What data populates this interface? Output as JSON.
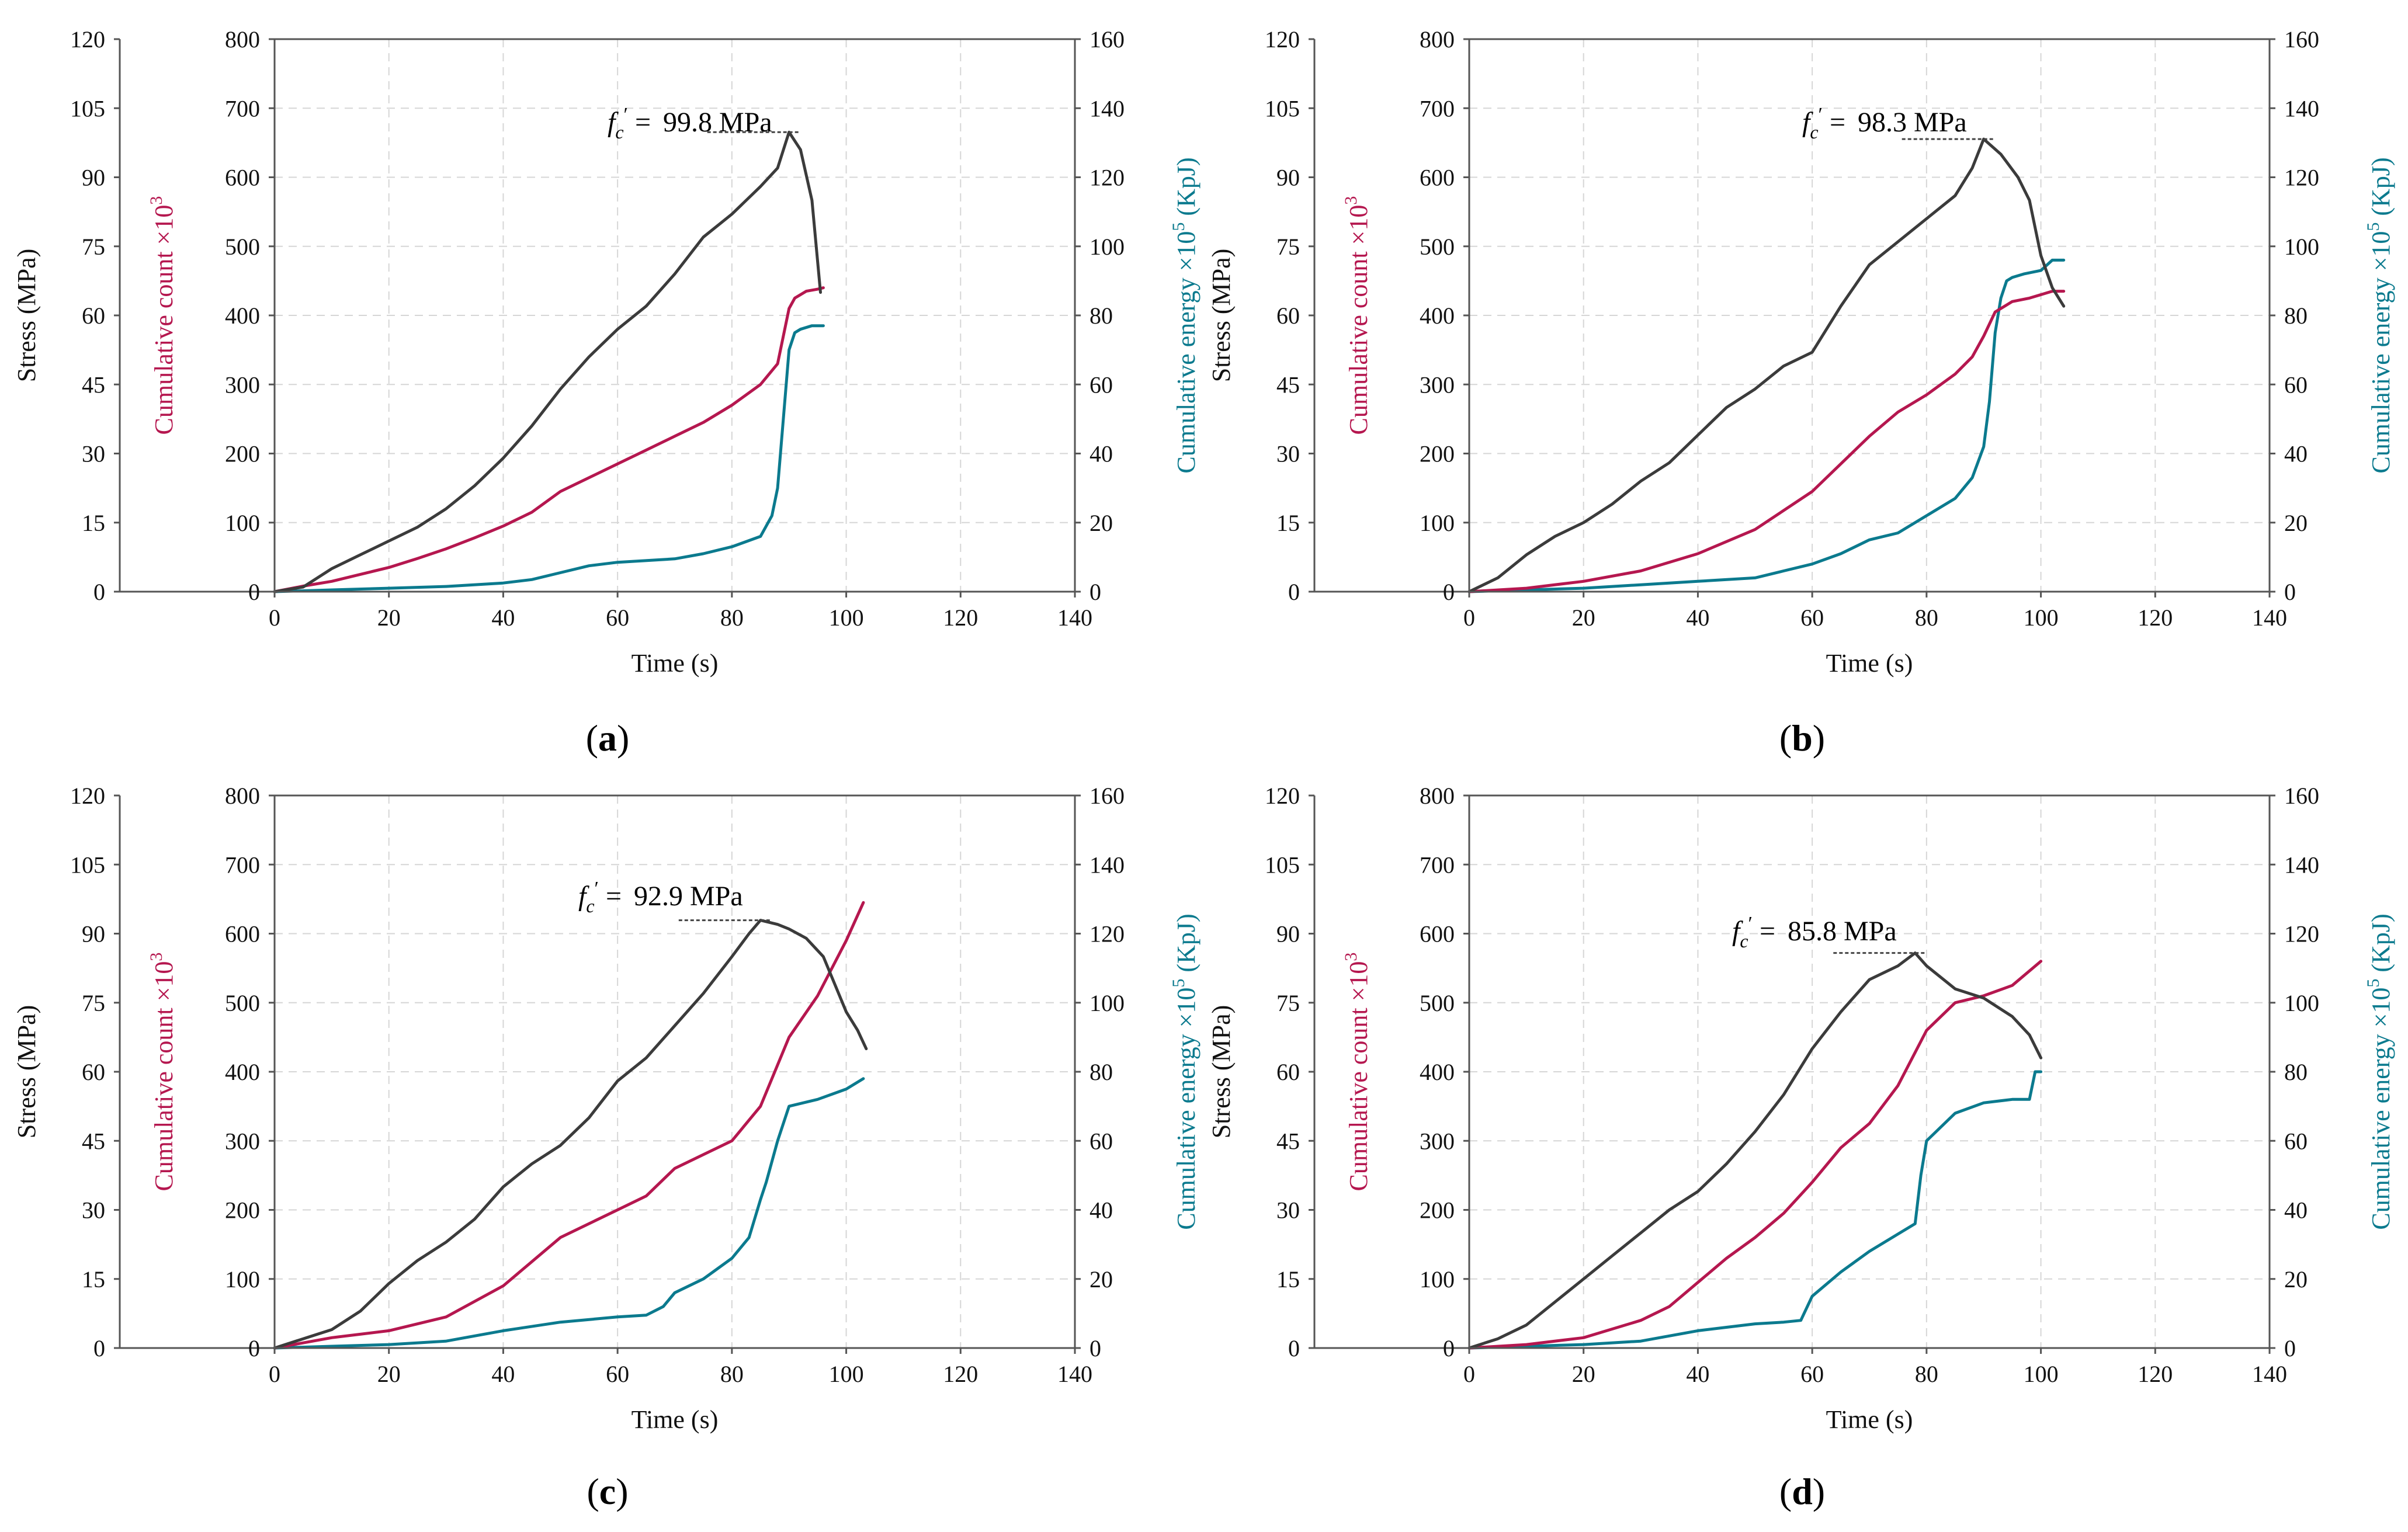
{
  "colors": {
    "stress": "#3b3b3b",
    "count": "#b5174f",
    "energy": "#0b7a8e",
    "grid": "#d6d6d6",
    "frame": "#555555"
  },
  "chart_data": [
    {
      "type": "line",
      "panel_label": "a",
      "peak_label": "99.8 MPa",
      "peak": {
        "x": 90,
        "y": 99.8
      },
      "xlabel": "Time (s)",
      "ylabel_stress": "Stress (MPa)",
      "ylabel_count": "Cumulative count ×10",
      "ylabel_energy": "Cumulative energy ×10",
      "ylabel_count_exp": "3",
      "ylabel_energy_exp": "5",
      "ylabel_energy_unit": " (KpJ)",
      "xlim": [
        0,
        140
      ],
      "xticks": [
        "0",
        "20",
        "40",
        "60",
        "80",
        "100",
        "120",
        "140"
      ],
      "ylim_stress": [
        0,
        120
      ],
      "yticks_stress": [
        "0",
        "15",
        "30",
        "45",
        "60",
        "75",
        "90",
        "105",
        "120"
      ],
      "ylim_count": [
        0,
        800
      ],
      "yticks_count": [
        "0",
        "100",
        "200",
        "300",
        "400",
        "500",
        "600",
        "700",
        "800"
      ],
      "ylim_energy": [
        0,
        160
      ],
      "yticks_energy": [
        "0",
        "20",
        "40",
        "60",
        "80",
        "100",
        "120",
        "140",
        "160"
      ],
      "series": [
        {
          "name": "Stress",
          "axis": "stress",
          "x": [
            0,
            5,
            10,
            15,
            20,
            25,
            30,
            35,
            40,
            45,
            50,
            55,
            60,
            65,
            70,
            75,
            80,
            85,
            88,
            90,
            92,
            94,
            95.5
          ],
          "y": [
            0,
            1,
            5,
            8,
            11,
            14,
            18,
            23,
            29,
            36,
            44,
            51,
            57,
            62,
            69,
            77,
            82,
            88,
            92,
            99.8,
            96,
            85,
            65
          ]
        },
        {
          "name": "Cumulative count",
          "axis": "count",
          "x": [
            0,
            5,
            10,
            15,
            20,
            25,
            30,
            35,
            40,
            45,
            50,
            55,
            60,
            65,
            70,
            75,
            80,
            85,
            88,
            90,
            91,
            93,
            95,
            96
          ],
          "y": [
            0,
            8,
            15,
            25,
            35,
            48,
            62,
            78,
            95,
            115,
            145,
            165,
            185,
            205,
            225,
            245,
            270,
            300,
            330,
            410,
            425,
            435,
            438,
            440
          ]
        },
        {
          "name": "Cumulative energy",
          "axis": "energy",
          "x": [
            0,
            10,
            20,
            30,
            40,
            45,
            50,
            55,
            60,
            70,
            75,
            80,
            85,
            87,
            88,
            89,
            90,
            91,
            92,
            94,
            96
          ],
          "y": [
            0,
            0.5,
            1,
            1.5,
            2.5,
            3.5,
            5.5,
            7.5,
            8.5,
            9.5,
            11,
            13,
            16,
            22,
            30,
            50,
            70,
            75,
            76,
            77,
            77
          ]
        }
      ]
    },
    {
      "type": "line",
      "panel_label": "b",
      "peak_label": "98.3 MPa",
      "peak": {
        "x": 90,
        "y": 98.3
      },
      "xlabel": "Time (s)",
      "ylabel_stress": "Stress (MPa)",
      "ylabel_count": "Cumulative count ×10",
      "ylabel_energy": "Cumulative energy ×10",
      "ylabel_count_exp": "3",
      "ylabel_energy_exp": "5",
      "ylabel_energy_unit": " (KpJ)",
      "xlim": [
        0,
        140
      ],
      "xticks": [
        "0",
        "20",
        "40",
        "60",
        "80",
        "100",
        "120",
        "140"
      ],
      "ylim_stress": [
        0,
        120
      ],
      "yticks_stress": [
        "0",
        "15",
        "30",
        "45",
        "60",
        "75",
        "90",
        "105",
        "120"
      ],
      "ylim_count": [
        0,
        800
      ],
      "yticks_count": [
        "0",
        "100",
        "200",
        "300",
        "400",
        "500",
        "600",
        "700",
        "800"
      ],
      "ylim_energy": [
        0,
        160
      ],
      "yticks_energy": [
        "0",
        "20",
        "40",
        "60",
        "80",
        "100",
        "120",
        "140",
        "160"
      ],
      "series": [
        {
          "name": "Stress",
          "axis": "stress",
          "x": [
            0,
            5,
            10,
            15,
            20,
            25,
            30,
            35,
            40,
            45,
            50,
            55,
            60,
            65,
            70,
            75,
            80,
            85,
            88,
            90,
            93,
            96,
            98,
            100,
            102,
            104
          ],
          "y": [
            0,
            3,
            8,
            12,
            15,
            19,
            24,
            28,
            34,
            40,
            44,
            49,
            52,
            62,
            71,
            76,
            81,
            86,
            92,
            98.3,
            95,
            90,
            85,
            73,
            66,
            62
          ]
        },
        {
          "name": "Cumulative count",
          "axis": "count",
          "x": [
            0,
            10,
            20,
            30,
            40,
            50,
            60,
            65,
            70,
            75,
            80,
            85,
            88,
            90,
            92,
            95,
            98,
            100,
            102,
            104
          ],
          "y": [
            0,
            5,
            15,
            30,
            55,
            90,
            145,
            185,
            225,
            260,
            285,
            315,
            340,
            370,
            405,
            420,
            425,
            430,
            435,
            435
          ]
        },
        {
          "name": "Cumulative energy",
          "axis": "energy",
          "x": [
            0,
            10,
            20,
            30,
            40,
            50,
            55,
            60,
            65,
            70,
            75,
            80,
            85,
            88,
            90,
            91,
            92,
            93,
            94,
            95,
            97,
            100,
            102,
            104
          ],
          "y": [
            0,
            0.5,
            1,
            2,
            3,
            4,
            6,
            8,
            11,
            15,
            17,
            22,
            27,
            33,
            42,
            55,
            75,
            85,
            90,
            91,
            92,
            93,
            96,
            96
          ]
        }
      ]
    },
    {
      "type": "line",
      "panel_label": "c",
      "peak_label": "92.9 MPa",
      "peak": {
        "x": 85,
        "y": 92.9
      },
      "xlabel": "Time (s)",
      "ylabel_stress": "Stress (MPa)",
      "ylabel_count": "Cumulative count ×10",
      "ylabel_energy": "Cumulative energy ×10",
      "ylabel_count_exp": "3",
      "ylabel_energy_exp": "5",
      "ylabel_energy_unit": " (KpJ)",
      "xlim": [
        0,
        140
      ],
      "xticks": [
        "0",
        "20",
        "40",
        "60",
        "80",
        "100",
        "120",
        "140"
      ],
      "ylim_stress": [
        0,
        120
      ],
      "yticks_stress": [
        "0",
        "15",
        "30",
        "45",
        "60",
        "75",
        "90",
        "105",
        "120"
      ],
      "ylim_count": [
        0,
        800
      ],
      "yticks_count": [
        "0",
        "100",
        "200",
        "300",
        "400",
        "500",
        "600",
        "700",
        "800"
      ],
      "ylim_energy": [
        0,
        160
      ],
      "yticks_energy": [
        "0",
        "20",
        "40",
        "60",
        "80",
        "100",
        "120",
        "140",
        "160"
      ],
      "series": [
        {
          "name": "Stress",
          "axis": "stress",
          "x": [
            0,
            5,
            10,
            15,
            20,
            25,
            30,
            35,
            40,
            45,
            50,
            55,
            60,
            65,
            70,
            75,
            80,
            83,
            85,
            88,
            90,
            93,
            96,
            98,
            100,
            102,
            103.5
          ],
          "y": [
            0,
            2,
            4,
            8,
            14,
            19,
            23,
            28,
            35,
            40,
            44,
            50,
            58,
            63,
            70,
            77,
            85,
            90,
            92.9,
            92,
            91,
            89,
            85,
            79,
            73,
            69,
            65
          ]
        },
        {
          "name": "Cumulative count",
          "axis": "count",
          "x": [
            0,
            10,
            20,
            30,
            40,
            45,
            50,
            55,
            60,
            65,
            70,
            75,
            80,
            85,
            90,
            95,
            100,
            103
          ],
          "y": [
            0,
            15,
            25,
            45,
            90,
            125,
            160,
            180,
            200,
            220,
            260,
            280,
            300,
            350,
            450,
            510,
            590,
            645
          ]
        },
        {
          "name": "Cumulative energy",
          "axis": "energy",
          "x": [
            0,
            10,
            20,
            30,
            40,
            50,
            60,
            65,
            68,
            70,
            75,
            80,
            83,
            85,
            86,
            88,
            90,
            95,
            100,
            103
          ],
          "y": [
            0,
            0.5,
            1,
            2,
            5,
            7.5,
            9,
            9.5,
            12,
            16,
            20,
            26,
            32,
            43,
            48,
            60,
            70,
            72,
            75,
            78
          ]
        }
      ]
    },
    {
      "type": "line",
      "panel_label": "d",
      "peak_label": "85.8 MPa",
      "peak": {
        "x": 78,
        "y": 85.8
      },
      "xlabel": "Time (s)",
      "ylabel_stress": "Stress (MPa)",
      "ylabel_count": "Cumulative count ×10",
      "ylabel_energy": "Cumulative energy ×10",
      "ylabel_count_exp": "3",
      "ylabel_energy_exp": "5",
      "ylabel_energy_unit": " (KpJ)",
      "xlim": [
        0,
        140
      ],
      "xticks": [
        "0",
        "20",
        "40",
        "60",
        "80",
        "100",
        "120",
        "140"
      ],
      "ylim_stress": [
        0,
        120
      ],
      "yticks_stress": [
        "0",
        "15",
        "30",
        "45",
        "60",
        "75",
        "90",
        "105",
        "120"
      ],
      "ylim_count": [
        0,
        800
      ],
      "yticks_count": [
        "0",
        "100",
        "200",
        "300",
        "400",
        "500",
        "600",
        "700",
        "800"
      ],
      "ylim_energy": [
        0,
        160
      ],
      "yticks_energy": [
        "0",
        "20",
        "40",
        "60",
        "80",
        "100",
        "120",
        "140",
        "160"
      ],
      "series": [
        {
          "name": "Stress",
          "axis": "stress",
          "x": [
            0,
            5,
            10,
            15,
            20,
            25,
            30,
            35,
            40,
            45,
            50,
            55,
            60,
            65,
            70,
            75,
            78,
            80,
            85,
            90,
            95,
            98,
            100
          ],
          "y": [
            0,
            2,
            5,
            10,
            15,
            20,
            25,
            30,
            34,
            40,
            47,
            55,
            65,
            73,
            80,
            83,
            85.8,
            83,
            78,
            76,
            72,
            68,
            63
          ]
        },
        {
          "name": "Cumulative count",
          "axis": "count",
          "x": [
            0,
            10,
            20,
            30,
            35,
            40,
            45,
            50,
            55,
            60,
            65,
            70,
            75,
            80,
            85,
            90,
            95,
            100
          ],
          "y": [
            0,
            5,
            15,
            40,
            60,
            95,
            130,
            160,
            195,
            240,
            290,
            325,
            380,
            460,
            500,
            510,
            525,
            560
          ]
        },
        {
          "name": "Cumulative energy",
          "axis": "energy",
          "x": [
            0,
            10,
            20,
            30,
            40,
            45,
            50,
            55,
            58,
            60,
            65,
            70,
            75,
            78,
            79,
            80,
            85,
            90,
            95,
            98,
            99,
            100
          ],
          "y": [
            0,
            0.5,
            1,
            2,
            5,
            6,
            7,
            7.5,
            8,
            15,
            22,
            28,
            33,
            36,
            50,
            60,
            68,
            71,
            72,
            72,
            80,
            80
          ]
        }
      ]
    }
  ]
}
